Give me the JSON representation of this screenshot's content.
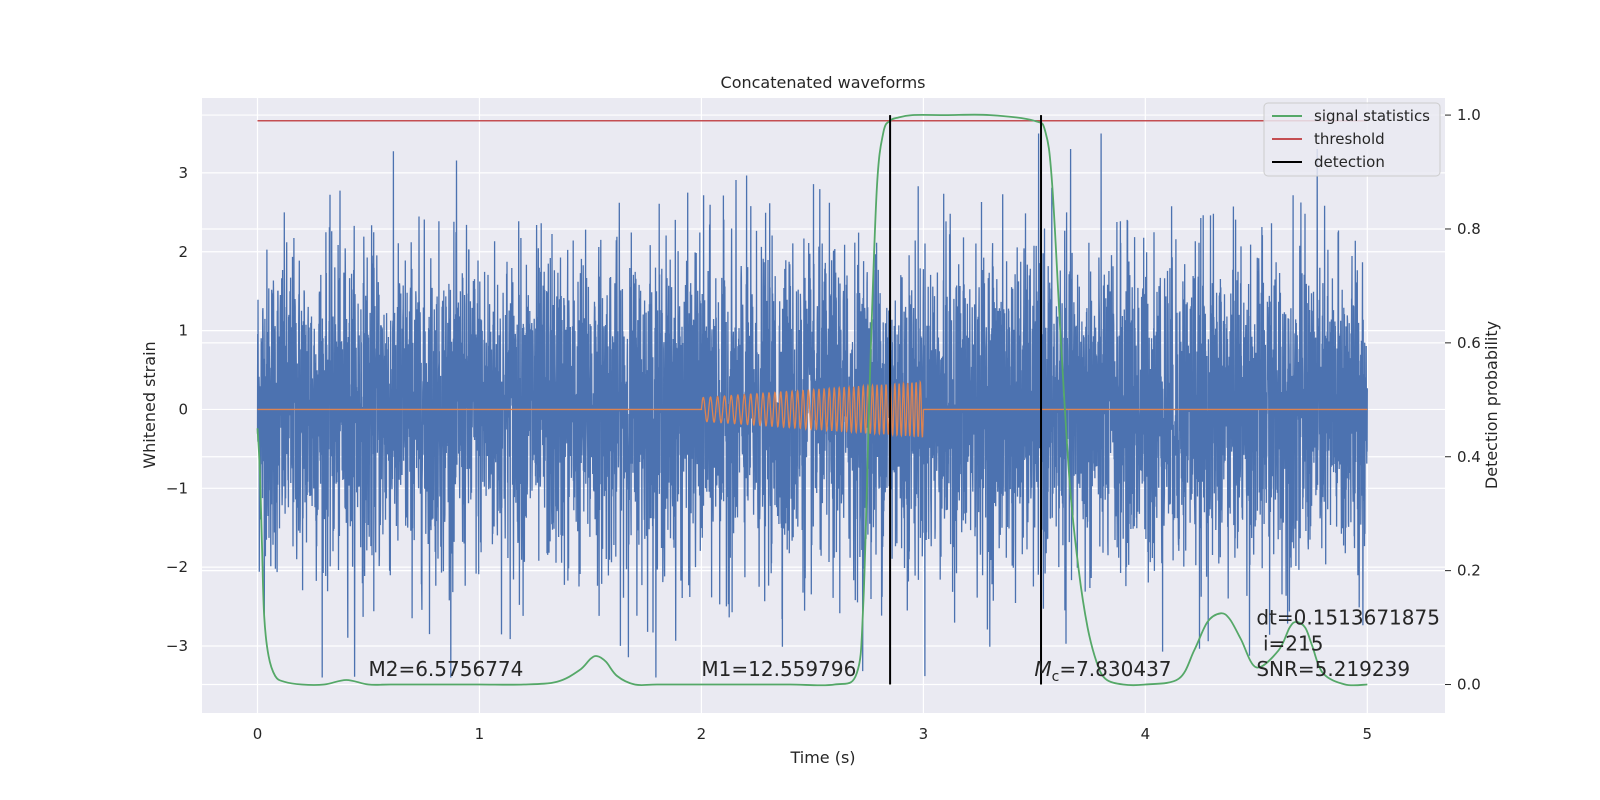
{
  "chart_data": {
    "type": "line",
    "title": "Concatenated waveforms",
    "xlabel": "Time (s)",
    "ylabel_left": "Whitened strain",
    "ylabel_right": "Detection probability",
    "xlim": [
      -0.25,
      5.35
    ],
    "ylim_left": [
      -3.85,
      3.95
    ],
    "ylim_right": [
      -0.05,
      1.03
    ],
    "xticks": [
      0,
      1,
      2,
      3,
      4,
      5
    ],
    "yticks_left": [
      -3,
      -2,
      -1,
      0,
      1,
      2,
      3
    ],
    "yticks_right": [
      0.0,
      0.2,
      0.4,
      0.6,
      0.8,
      1.0
    ],
    "ytick_labels_left": [
      "−3",
      "−2",
      "−1",
      "0",
      "1",
      "2",
      "3"
    ],
    "ytick_labels_right": [
      "0.0",
      "0.2",
      "0.4",
      "0.6",
      "0.8",
      "1.0"
    ],
    "grid": true,
    "legend_position": "top-right",
    "legend": [
      {
        "label": "signal statistics",
        "color": "#55a868"
      },
      {
        "label": "threshold",
        "color": "#c44e52"
      },
      {
        "label": "detection",
        "color": "#000000"
      }
    ],
    "series": [
      {
        "kind": "noise",
        "color": "#4c72b0",
        "x_range": [
          0,
          5
        ],
        "std": 1.0
      },
      {
        "kind": "chirp",
        "color": "#dd8452",
        "x_start": 2.0,
        "x_end": 3.0,
        "amplitude_start": 0.15,
        "amplitude_end": 0.35
      },
      {
        "name": "signal statistics",
        "color": "#55a868",
        "axis": "right",
        "x": [
          0,
          0.01,
          0.02,
          0.03,
          0.05,
          0.08,
          0.12,
          0.2,
          0.3,
          0.4,
          0.5,
          0.6,
          0.8,
          1.0,
          1.2,
          1.35,
          1.45,
          1.5,
          1.53,
          1.57,
          1.62,
          1.7,
          1.8,
          2.0,
          2.2,
          2.4,
          2.6,
          2.7,
          2.73,
          2.76,
          2.79,
          2.82,
          2.85,
          2.88,
          2.95,
          3.1,
          3.3,
          3.5,
          3.55,
          3.58,
          3.62,
          3.66,
          3.7,
          3.74,
          3.78,
          3.82,
          3.9,
          4.0,
          4.15,
          4.22,
          4.28,
          4.34,
          4.38,
          4.43,
          4.5,
          4.6,
          4.65,
          4.68,
          4.72,
          4.75,
          4.8,
          4.9,
          5.0
        ],
        "y": [
          0.45,
          0.38,
          0.25,
          0.12,
          0.05,
          0.015,
          0.005,
          0.0,
          0.0,
          0.008,
          0.0,
          0.0,
          0.0,
          0.0,
          0.0,
          0.005,
          0.025,
          0.045,
          0.05,
          0.04,
          0.015,
          0.0,
          0.0,
          0.0,
          0.0,
          0.0,
          0.0,
          0.02,
          0.15,
          0.55,
          0.87,
          0.97,
          0.99,
          0.995,
          1.0,
          1.0,
          1.0,
          0.99,
          0.97,
          0.88,
          0.6,
          0.35,
          0.2,
          0.1,
          0.04,
          0.01,
          0.0,
          0.0,
          0.01,
          0.06,
          0.11,
          0.125,
          0.115,
          0.08,
          0.03,
          0.06,
          0.1,
          0.11,
          0.1,
          0.07,
          0.02,
          0.0,
          0.0
        ]
      },
      {
        "name": "threshold",
        "color": "#c44e52",
        "axis": "right",
        "x": [
          0,
          5
        ],
        "y": [
          0.99,
          0.99
        ]
      }
    ],
    "detections": [
      2.85,
      3.53
    ],
    "detection_range": [
      0.0,
      1.0
    ],
    "annotations": [
      {
        "text": "M2=6.5756774",
        "x": 0.5,
        "y": 0.015,
        "axis": "right"
      },
      {
        "text": "M1=12.559796",
        "x": 2.0,
        "y": 0.015,
        "axis": "right"
      },
      {
        "text_main": "M",
        "text_sub": "c",
        "text_rest": "=7.830437",
        "x": 3.5,
        "y": 0.015,
        "axis": "right"
      },
      {
        "text": "dt=0.1513671875",
        "x": 4.5,
        "y": 0.105,
        "axis": "right"
      },
      {
        "text": "i=215",
        "x": 4.53,
        "y": 0.06,
        "axis": "right"
      },
      {
        "text": "SNR=5.219239",
        "x": 4.5,
        "y": 0.015,
        "axis": "right"
      }
    ]
  }
}
